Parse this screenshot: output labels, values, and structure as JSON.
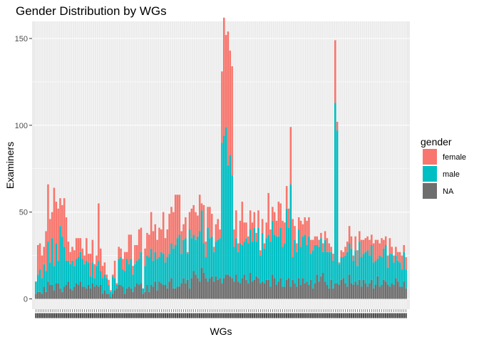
{
  "chart_data": {
    "type": "bar",
    "stacked": true,
    "title": "Gender Distribution by WGs",
    "xlabel": "WGs",
    "ylabel": "Examiners",
    "ylim": [
      0,
      158
    ],
    "yticks": [
      0,
      50,
      100,
      150
    ],
    "grid": true,
    "legend": {
      "title": "gender",
      "position": "right",
      "entries": [
        {
          "label": "female",
          "color": "#F8766D"
        },
        {
          "label": "male",
          "color": "#00BFC4"
        },
        {
          "label": "NA",
          "color": "#6E6E6E"
        }
      ]
    },
    "series": [
      {
        "name": "NA",
        "color": "#6E6E6E",
        "values": [
          3,
          4,
          4,
          3,
          7,
          4,
          10,
          8,
          8,
          5,
          9,
          9,
          6,
          4,
          7,
          8,
          10,
          6,
          5,
          7,
          9,
          8,
          10,
          7,
          7,
          6,
          8,
          6,
          9,
          7,
          8,
          7,
          8,
          3,
          5,
          3,
          3,
          1,
          3,
          5,
          6,
          8,
          8,
          7,
          3,
          6,
          7,
          6,
          4,
          7,
          9,
          8,
          9,
          3,
          4,
          8,
          4,
          8,
          7,
          10,
          5,
          10,
          9,
          8,
          8,
          6,
          10,
          12,
          6,
          6,
          7,
          7,
          9,
          12,
          9,
          11,
          6,
          12,
          16,
          14,
          12,
          10,
          18,
          15,
          12,
          10,
          12,
          13,
          10,
          13,
          11,
          12,
          9,
          12,
          14,
          14,
          13,
          12,
          10,
          14,
          10,
          9,
          12,
          14,
          11,
          9,
          15,
          10,
          11,
          13,
          12,
          9,
          10,
          9,
          11,
          11,
          7,
          14,
          12,
          8,
          10,
          12,
          7,
          7,
          11,
          12,
          7,
          11,
          9,
          7,
          12,
          8,
          12,
          9,
          10,
          8,
          11,
          6,
          9,
          14,
          10,
          13,
          15,
          10,
          8,
          6,
          11,
          6,
          9,
          9,
          8,
          11,
          12,
          9,
          7,
          14,
          9,
          8,
          10,
          8,
          11,
          7,
          11,
          9,
          7,
          9,
          11,
          6,
          8,
          13,
          7,
          8,
          11,
          10,
          8,
          7,
          9,
          8,
          12,
          10,
          7,
          7,
          10,
          6
        ]
      },
      {
        "name": "male",
        "color": "#00BFC4",
        "values": [
          7,
          10,
          13,
          9,
          13,
          12,
          23,
          13,
          27,
          14,
          23,
          13,
          36,
          32,
          23,
          14,
          12,
          14,
          17,
          12,
          14,
          16,
          17,
          16,
          13,
          16,
          13,
          7,
          12,
          5,
          11,
          15,
          8,
          9,
          9,
          9,
          5,
          3,
          10,
          7,
          2,
          15,
          16,
          10,
          13,
          17,
          13,
          17,
          10,
          13,
          13,
          15,
          18,
          3,
          15,
          17,
          20,
          21,
          15,
          17,
          18,
          14,
          18,
          18,
          13,
          18,
          16,
          20,
          23,
          25,
          28,
          30,
          17,
          22,
          26,
          15,
          34,
          23,
          21,
          20,
          24,
          29,
          33,
          17,
          12,
          31,
          23,
          23,
          17,
          20,
          23,
          23,
          81,
          82,
          85,
          63,
          70,
          59,
          20,
          21,
          17,
          23,
          19,
          19,
          24,
          23,
          25,
          23,
          30,
          20,
          29,
          16,
          28,
          20,
          24,
          26,
          26,
          31,
          25,
          28,
          26,
          29,
          23,
          25,
          41,
          29,
          59,
          13,
          25,
          20,
          28,
          22,
          24,
          28,
          21,
          28,
          15,
          22,
          22,
          17,
          20,
          22,
          12,
          24,
          19,
          21,
          16,
          16,
          104,
          88,
          12,
          13,
          12,
          16,
          20,
          18,
          20,
          14,
          18,
          11,
          22,
          17,
          15,
          18,
          21,
          16,
          20,
          15,
          14,
          10,
          18,
          16,
          18,
          21,
          10,
          19,
          17,
          13,
          13,
          12,
          14,
          10,
          17,
          11
        ]
      },
      {
        "name": "female",
        "color": "#F8766D",
        "values": [
          0,
          17,
          15,
          13,
          10,
          23,
          33,
          25,
          15,
          45,
          24,
          30,
          16,
          18,
          28,
          25,
          11,
          7,
          8,
          9,
          12,
          11,
          8,
          6,
          5,
          13,
          5,
          13,
          13,
          8,
          6,
          33,
          13,
          7,
          7,
          2,
          3,
          1,
          1,
          10,
          1,
          7,
          5,
          6,
          11,
          4,
          17,
          14,
          5,
          11,
          9,
          17,
          14,
          0,
          10,
          13,
          13,
          21,
          17,
          16,
          11,
          17,
          13,
          24,
          14,
          16,
          23,
          21,
          21,
          29,
          25,
          23,
          13,
          9,
          12,
          1,
          10,
          17,
          17,
          16,
          12,
          21,
          4,
          22,
          9,
          12,
          18,
          13,
          3,
          10,
          12,
          5,
          41,
          68,
          53,
          77,
          60,
          63,
          10,
          16,
          5,
          13,
          25,
          11,
          9,
          4,
          11,
          11,
          9,
          5,
          10,
          3,
          8,
          3,
          9,
          24,
          7,
          8,
          13,
          9,
          20,
          14,
          15,
          12,
          13,
          11,
          33,
          22,
          8,
          5,
          7,
          15,
          7,
          10,
          14,
          11,
          8,
          6,
          5,
          5,
          4,
          3,
          5,
          5,
          8,
          5,
          3,
          4,
          36,
          5,
          1,
          4,
          3,
          5,
          6,
          10,
          7,
          3,
          8,
          9,
          6,
          10,
          8,
          8,
          8,
          9,
          6,
          11,
          12,
          11,
          7,
          11,
          5,
          5,
          7,
          9,
          4,
          4,
          5,
          5,
          6,
          8,
          4,
          7
        ]
      }
    ]
  }
}
